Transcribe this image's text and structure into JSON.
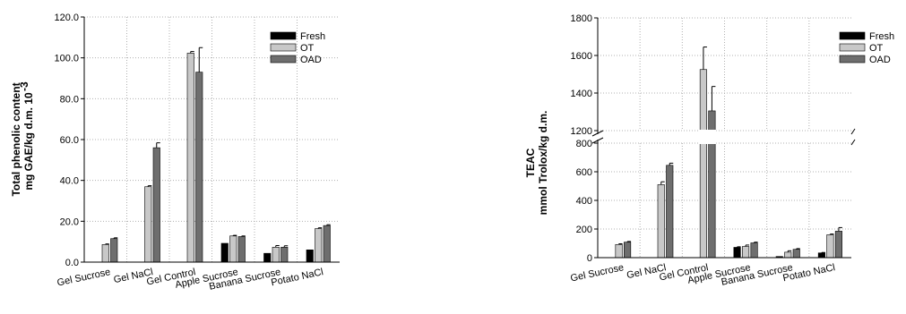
{
  "chart_data": [
    {
      "type": "bar",
      "title": "",
      "ylabel": [
        "Total phenolic content",
        "mg GAE/kg d.m. 10"
      ],
      "ylabel_superscript": "-3",
      "ylim": [
        0,
        120
      ],
      "yticks": [
        "0.0",
        "20.0",
        "40.0",
        "60.0",
        "80.0",
        "100.0",
        "120.0"
      ],
      "grid": "dotted",
      "legend_position": "top-right",
      "categories": [
        "Gel Sucrose",
        "Gel NaCl",
        "Gel Control",
        "Apple Sucrose",
        "Banana Sucrose",
        "Potato NaCl"
      ],
      "series": [
        {
          "name": "Fresh",
          "color": "#000000",
          "values": [
            null,
            null,
            null,
            9.2,
            4.3,
            6.0
          ],
          "errors": [
            null,
            null,
            null,
            0,
            0,
            0
          ]
        },
        {
          "name": "OT",
          "color": "#c8c8c8",
          "values": [
            8.6,
            36.9,
            102.3,
            12.8,
            7.3,
            16.4
          ],
          "errors": [
            0.3,
            0.5,
            0.8,
            0.3,
            0.8,
            0.4
          ]
        },
        {
          "name": "OAD",
          "color": "#6e6e6e",
          "values": [
            11.5,
            56.0,
            93.0,
            12.5,
            7.3,
            17.9
          ],
          "errors": [
            0.4,
            2.4,
            12.0,
            0.3,
            0.7,
            0.4
          ]
        }
      ]
    },
    {
      "type": "bar",
      "title": "",
      "ylabel": [
        "TEAC",
        "mmol Trolox/kg d.m."
      ],
      "broken_axis": true,
      "lower_ylim": [
        0,
        800
      ],
      "upper_ylim": [
        1200,
        1800
      ],
      "yticks_lower": [
        "0",
        "200",
        "400",
        "600",
        "800"
      ],
      "yticks_upper": [
        "1200",
        "1400",
        "1600",
        "1800"
      ],
      "grid": "dotted",
      "legend_position": "top-right",
      "categories": [
        "Gel Sucrose",
        "Gel NaCl",
        "Gel Control",
        "Apple Sucrose",
        "Banana Sucrose",
        "Potato NaCl"
      ],
      "series": [
        {
          "name": "Fresh",
          "color": "#000000",
          "values": [
            null,
            null,
            null,
            72,
            8,
            33
          ],
          "errors": [
            null,
            null,
            null,
            4,
            0,
            3
          ]
        },
        {
          "name": "OT",
          "color": "#c8c8c8",
          "values": [
            92,
            510,
            1525,
            78,
            38,
            160
          ],
          "errors": [
            5,
            20,
            120,
            10,
            10,
            5
          ]
        },
        {
          "name": "OAD",
          "color": "#6e6e6e",
          "values": [
            108,
            645,
            1305,
            103,
            58,
            185
          ],
          "errors": [
            5,
            15,
            130,
            5,
            5,
            25
          ]
        }
      ]
    }
  ]
}
